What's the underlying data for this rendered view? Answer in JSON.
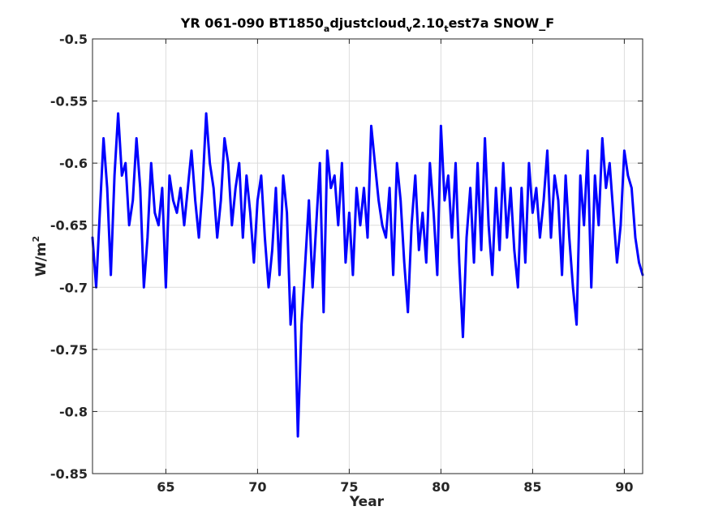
{
  "chart_data": {
    "type": "line",
    "title": {
      "part1": "YR 061-090 BT1850",
      "sub1": "a",
      "part2": "djustcloud",
      "sub2": "v",
      "part3": "2.10",
      "sub3": "t",
      "part4": "est7a SNOW_F"
    },
    "xlabel": "Year",
    "ylabel": {
      "base": "W/m",
      "sup": "2"
    },
    "xlim": [
      61,
      91
    ],
    "ylim": [
      -0.85,
      -0.5
    ],
    "x_ticks": [
      65,
      70,
      75,
      80,
      85,
      90
    ],
    "y_ticks": [
      -0.85,
      -0.8,
      -0.75,
      -0.7,
      -0.65,
      -0.6,
      -0.55,
      -0.5
    ],
    "y_tick_labels": [
      "-0.85",
      "-0.8",
      "-0.75",
      "-0.7",
      "-0.65",
      "-0.6",
      "-0.55",
      "-0.5"
    ],
    "grid": true,
    "line_color": "#0000ff",
    "series": [
      {
        "x": [
          61.0,
          61.2,
          61.4,
          61.6,
          61.8,
          62.0,
          62.2,
          62.4,
          62.6,
          62.8,
          63.0,
          63.2,
          63.4,
          63.6,
          63.8,
          64.0,
          64.2,
          64.4,
          64.6,
          64.8,
          65.0,
          65.2,
          65.4,
          65.6,
          65.8,
          66.0,
          66.2,
          66.4,
          66.6,
          66.8,
          67.0,
          67.2,
          67.4,
          67.6,
          67.8,
          68.0,
          68.2,
          68.4,
          68.6,
          68.8,
          69.0,
          69.2,
          69.4,
          69.6,
          69.8,
          70.0,
          70.2,
          70.4,
          70.6,
          70.8,
          71.0,
          71.2,
          71.4,
          71.6,
          71.8,
          72.0,
          72.2,
          72.4,
          72.6,
          72.8,
          73.0,
          73.2,
          73.4,
          73.6,
          73.8,
          74.0,
          74.2,
          74.4,
          74.6,
          74.8,
          75.0,
          75.2,
          75.4,
          75.6,
          75.8,
          76.0,
          76.2,
          76.4,
          76.6,
          76.8,
          77.0,
          77.2,
          77.4,
          77.6,
          77.8,
          78.0,
          78.2,
          78.4,
          78.6,
          78.8,
          79.0,
          79.2,
          79.4,
          79.6,
          79.8,
          80.0,
          80.2,
          80.4,
          80.6,
          80.8,
          81.0,
          81.2,
          81.4,
          81.6,
          81.8,
          82.0,
          82.2,
          82.4,
          82.6,
          82.8,
          83.0,
          83.2,
          83.4,
          83.6,
          83.8,
          84.0,
          84.2,
          84.4,
          84.6,
          84.8,
          85.0,
          85.2,
          85.4,
          85.6,
          85.8,
          86.0,
          86.2,
          86.4,
          86.6,
          86.8,
          87.0,
          87.2,
          87.4,
          87.6,
          87.8,
          88.0,
          88.2,
          88.4,
          88.6,
          88.8,
          89.0,
          89.2,
          89.4,
          89.6,
          89.8,
          90.0,
          90.2,
          90.4,
          90.6,
          90.8,
          91.0
        ],
        "values": [
          -0.66,
          -0.7,
          -0.64,
          -0.58,
          -0.62,
          -0.69,
          -0.61,
          -0.56,
          -0.61,
          -0.6,
          -0.65,
          -0.63,
          -0.58,
          -0.62,
          -0.7,
          -0.66,
          -0.6,
          -0.64,
          -0.65,
          -0.62,
          -0.7,
          -0.61,
          -0.63,
          -0.64,
          -0.62,
          -0.65,
          -0.62,
          -0.59,
          -0.63,
          -0.66,
          -0.62,
          -0.56,
          -0.6,
          -0.62,
          -0.66,
          -0.63,
          -0.58,
          -0.6,
          -0.65,
          -0.62,
          -0.6,
          -0.66,
          -0.61,
          -0.64,
          -0.68,
          -0.63,
          -0.61,
          -0.66,
          -0.7,
          -0.67,
          -0.62,
          -0.69,
          -0.61,
          -0.64,
          -0.73,
          -0.7,
          -0.82,
          -0.73,
          -0.68,
          -0.63,
          -0.7,
          -0.65,
          -0.6,
          -0.72,
          -0.59,
          -0.62,
          -0.61,
          -0.65,
          -0.6,
          -0.68,
          -0.64,
          -0.69,
          -0.62,
          -0.65,
          -0.62,
          -0.66,
          -0.57,
          -0.6,
          -0.63,
          -0.65,
          -0.66,
          -0.62,
          -0.69,
          -0.6,
          -0.63,
          -0.68,
          -0.72,
          -0.65,
          -0.61,
          -0.67,
          -0.64,
          -0.68,
          -0.6,
          -0.64,
          -0.69,
          -0.57,
          -0.63,
          -0.61,
          -0.66,
          -0.6,
          -0.68,
          -0.74,
          -0.66,
          -0.62,
          -0.68,
          -0.6,
          -0.67,
          -0.58,
          -0.65,
          -0.69,
          -0.62,
          -0.67,
          -0.6,
          -0.66,
          -0.62,
          -0.67,
          -0.7,
          -0.62,
          -0.68,
          -0.6,
          -0.64,
          -0.62,
          -0.66,
          -0.63,
          -0.59,
          -0.66,
          -0.61,
          -0.63,
          -0.69,
          -0.61,
          -0.66,
          -0.7,
          -0.73,
          -0.61,
          -0.65,
          -0.59,
          -0.7,
          -0.61,
          -0.65,
          -0.58,
          -0.62,
          -0.6,
          -0.64,
          -0.68,
          -0.65,
          -0.59,
          -0.61,
          -0.62,
          -0.66,
          -0.68,
          -0.69
        ]
      }
    ]
  }
}
